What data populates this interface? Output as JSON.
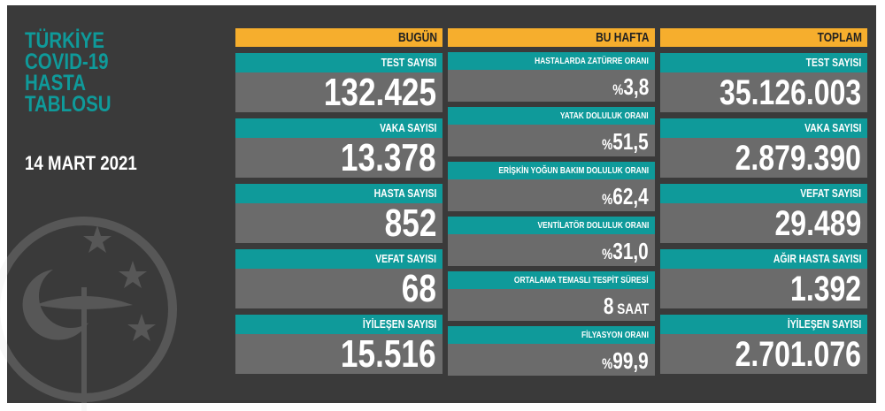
{
  "title_lines": [
    "TÜRKİYE",
    "COVID-19",
    "HASTA",
    "TABLOSU"
  ],
  "date": "14 MART 2021",
  "colors": {
    "background": "#3a3a3a",
    "header": "#f6ae2d",
    "label": "#0f9a9a",
    "value": "#6b6b6b"
  },
  "today": {
    "header": "BUGÜN",
    "items": [
      {
        "label": "TEST SAYISI",
        "value": "132.425"
      },
      {
        "label": "VAKA SAYISI",
        "value": "13.378"
      },
      {
        "label": "HASTA SAYISI",
        "value": "852"
      },
      {
        "label": "VEFAT SAYISI",
        "value": "68"
      },
      {
        "label": "İYİLEŞEN SAYISI",
        "value": "15.516"
      }
    ]
  },
  "week": {
    "header": "BU HAFTA",
    "items": [
      {
        "label": "HASTALARDA ZATÜRRE ORANI",
        "prefix": "%",
        "value": "3,8",
        "suffix": ""
      },
      {
        "label": "YATAK DOLULUK ORANI",
        "prefix": "%",
        "value": "51,5",
        "suffix": ""
      },
      {
        "label": "ERİŞKİN YOĞUN BAKIM DOLULUK ORANI",
        "prefix": "%",
        "value": "62,4",
        "suffix": ""
      },
      {
        "label": "VENTİLATÖR DOLULUK ORANI",
        "prefix": "%",
        "value": "31,0",
        "suffix": ""
      },
      {
        "label": "ORTALAMA TEMASLI TESPİT SÜRESİ",
        "prefix": "",
        "value": "8",
        "suffix": " SAAT"
      },
      {
        "label": "FİLYASYON ORANI",
        "prefix": "%",
        "value": "99,9",
        "suffix": ""
      }
    ]
  },
  "total": {
    "header": "TOPLAM",
    "items": [
      {
        "label": "TEST SAYISI",
        "value": "35.126.003"
      },
      {
        "label": "VAKA SAYISI",
        "value": "2.879.390"
      },
      {
        "label": "VEFAT SAYISI",
        "value": "29.489"
      },
      {
        "label": "AĞIR HASTA SAYISI",
        "value": "1.392"
      },
      {
        "label": "İYİLEŞEN SAYISI",
        "value": "2.701.076"
      }
    ]
  }
}
